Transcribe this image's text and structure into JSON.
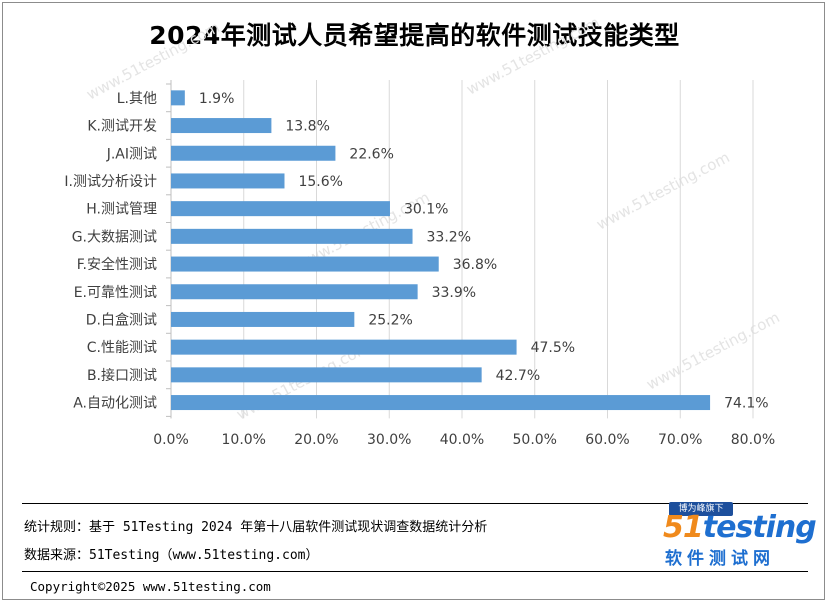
{
  "chart_data": {
    "type": "bar",
    "orientation": "horizontal",
    "title": "2024年测试人员希望提高的软件测试技能类型",
    "categories": [
      "L.其他",
      "K.测试开发",
      "J.AI测试",
      "I.测试分析设计",
      "H.测试管理",
      "G.大数据测试",
      "F.安全性测试",
      "E.可靠性测试",
      "D.白盒测试",
      "C.性能测试",
      "B.接口测试",
      "A.自动化测试"
    ],
    "values": [
      1.9,
      13.8,
      22.6,
      15.6,
      30.1,
      33.2,
      36.8,
      33.9,
      25.2,
      47.5,
      42.7,
      74.1
    ],
    "value_labels": [
      "1.9%",
      "13.8%",
      "22.6%",
      "15.6%",
      "30.1%",
      "33.2%",
      "36.8%",
      "33.9%",
      "25.2%",
      "47.5%",
      "42.7%",
      "74.1%"
    ],
    "x_ticks": [
      "0.0%",
      "10.0%",
      "20.0%",
      "30.0%",
      "40.0%",
      "50.0%",
      "60.0%",
      "70.0%",
      "80.0%"
    ],
    "xlim": [
      0,
      80
    ],
    "grid": true,
    "bar_color": "#5b9bd5"
  },
  "footer": {
    "rule": "统计规则：基于 51Testing 2024 年第十八届软件测试现状调查数据统计分析",
    "source": "数据来源：51Testing（www.51testing.com）",
    "copyright": "Copyright©2025 www.51testing.com"
  },
  "logo": {
    "badge": "博为峰旗下",
    "brand_number": "51",
    "brand_word": "testing",
    "cn": "软件测试网"
  },
  "watermark": "www.51testing.com"
}
